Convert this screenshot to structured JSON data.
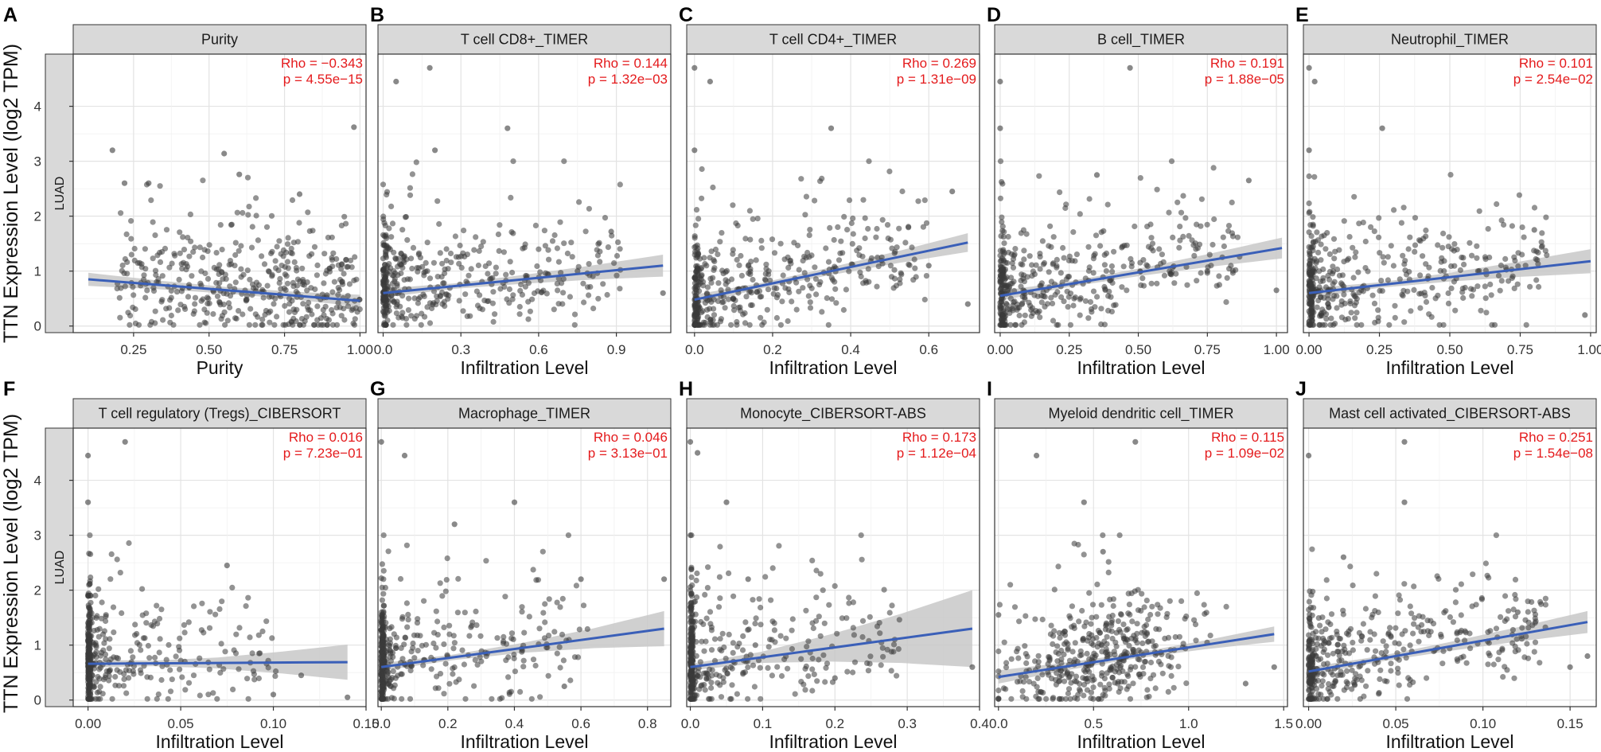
{
  "figure": {
    "y_axis_label": "TTN Expression Level (log2 TPM)",
    "row_strip_label": "LUAD",
    "colors": {
      "point": "#3a3a3a",
      "fit_line": "#3a5fb8",
      "band": "#c8c8c8",
      "stat_text": "#e41a1c",
      "strip_fill": "#d9d9d9"
    }
  },
  "chart_data": [
    {
      "type": "scatter",
      "letter": "A",
      "title": "Purity",
      "xlabel": "Purity",
      "ylabel": "TTN Expression Level (log2 TPM)",
      "rho": "Rho = −0.343",
      "p": "p = 4.55e−15",
      "xlim": [
        0.05,
        1.02
      ],
      "ylim": [
        -0.12,
        4.95
      ],
      "xticks": [
        0.25,
        0.5,
        0.75,
        1.0
      ],
      "xtick_labels": [
        "0.25",
        "0.50",
        "0.75",
        "1.00"
      ],
      "yticks": [
        0,
        1,
        2,
        3,
        4
      ],
      "fit": {
        "x": [
          0.1,
          1.0
        ],
        "y": [
          0.85,
          0.46
        ]
      },
      "band": [
        0.12,
        0.08,
        0.06,
        0.07,
        0.11
      ],
      "xdist": "unif",
      "xmin": 0.1,
      "xmax": 1.0,
      "outliers": [
        [
          0.98,
          3.62
        ],
        [
          0.55,
          3.14
        ],
        [
          0.18,
          3.2
        ],
        [
          0.6,
          2.76
        ],
        [
          0.3,
          2.6
        ],
        [
          0.22,
          2.6
        ],
        [
          0.8,
          2.4
        ]
      ]
    },
    {
      "type": "scatter",
      "letter": "B",
      "title": "T cell CD8+_TIMER",
      "xlabel": "Infiltration Level",
      "ylabel": "TTN Expression Level (log2 TPM)",
      "rho": "Rho = 0.144",
      "p": "p = 1.32e−03",
      "xlim": [
        -0.02,
        1.11
      ],
      "ylim": [
        -0.12,
        4.95
      ],
      "xticks": [
        0,
        0.3,
        0.6,
        0.9
      ],
      "xtick_labels": [
        "0.0",
        "0.3",
        "0.6",
        "0.9"
      ],
      "yticks": [
        0,
        1,
        2,
        3,
        4
      ],
      "fit": {
        "x": [
          0,
          1.08
        ],
        "y": [
          0.6,
          1.1
        ]
      },
      "band": [
        0.08,
        0.05,
        0.08,
        0.13,
        0.2
      ],
      "xdist": "skew",
      "xmin": 0,
      "xmax": 1.08,
      "outliers": [
        [
          0.05,
          4.45
        ],
        [
          0.18,
          4.7
        ],
        [
          0.48,
          3.6
        ],
        [
          0.2,
          3.2
        ],
        [
          0.88,
          1.72
        ],
        [
          1.08,
          0.6
        ],
        [
          0.75,
          1.0
        ]
      ]
    },
    {
      "type": "scatter",
      "letter": "C",
      "title": "T cell CD4+_TIMER",
      "xlabel": "Infiltration Level",
      "ylabel": "TTN Expression Level (log2 TPM)",
      "rho": "Rho = 0.269",
      "p": "p = 1.31e−09",
      "xlim": [
        -0.02,
        0.73
      ],
      "ylim": [
        -0.12,
        4.95
      ],
      "xticks": [
        0,
        0.2,
        0.4,
        0.6
      ],
      "xtick_labels": [
        "0.0",
        "0.2",
        "0.4",
        "0.6"
      ],
      "yticks": [
        0,
        1,
        2,
        3,
        4
      ],
      "fit": {
        "x": [
          0,
          0.7
        ],
        "y": [
          0.48,
          1.52
        ]
      },
      "band": [
        0.09,
        0.05,
        0.07,
        0.11,
        0.17
      ],
      "xdist": "skew",
      "xmin": 0,
      "xmax": 0.7,
      "outliers": [
        [
          0.0,
          4.7
        ],
        [
          0.04,
          4.45
        ],
        [
          0.35,
          3.6
        ],
        [
          0.0,
          3.2
        ],
        [
          0.66,
          2.45
        ],
        [
          0.7,
          0.4
        ],
        [
          0.6,
          1.1
        ]
      ]
    },
    {
      "type": "scatter",
      "letter": "D",
      "title": "B cell_TIMER",
      "xlabel": "Infiltration Level",
      "ylabel": "TTN Expression Level (log2 TPM)",
      "rho": "Rho = 0.191",
      "p": "p = 1.88e−05",
      "xlim": [
        -0.02,
        1.04
      ],
      "ylim": [
        -0.12,
        4.95
      ],
      "xticks": [
        0,
        0.25,
        0.5,
        0.75,
        1.0
      ],
      "xtick_labels": [
        "0.00",
        "0.25",
        "0.50",
        "0.75",
        "1.00"
      ],
      "yticks": [
        0,
        1,
        2,
        3,
        4
      ],
      "fit": {
        "x": [
          0,
          1.02
        ],
        "y": [
          0.55,
          1.42
        ]
      },
      "band": [
        0.09,
        0.05,
        0.07,
        0.12,
        0.19
      ],
      "xdist": "skew",
      "xmin": 0,
      "xmax": 1.02,
      "outliers": [
        [
          0.0,
          4.45
        ],
        [
          0.47,
          4.7
        ],
        [
          0.0,
          3.6
        ],
        [
          0.35,
          2.75
        ],
        [
          0.9,
          2.65
        ],
        [
          1.0,
          0.65
        ],
        [
          0.75,
          1.0
        ]
      ]
    },
    {
      "type": "scatter",
      "letter": "E",
      "title": "Neutrophil_TIMER",
      "xlabel": "Infiltration Level",
      "ylabel": "TTN Expression Level (log2 TPM)",
      "rho": "Rho = 0.101",
      "p": "p = 2.54e−02",
      "xlim": [
        -0.02,
        1.02
      ],
      "ylim": [
        -0.12,
        4.95
      ],
      "xticks": [
        0,
        0.25,
        0.5,
        0.75,
        1.0
      ],
      "xtick_labels": [
        "0.00",
        "0.25",
        "0.50",
        "0.75",
        "1.00"
      ],
      "yticks": [
        0,
        1,
        2,
        3,
        4
      ],
      "fit": {
        "x": [
          0,
          1.0
        ],
        "y": [
          0.6,
          1.18
        ]
      },
      "band": [
        0.09,
        0.05,
        0.08,
        0.14,
        0.22
      ],
      "xdist": "skew",
      "xmin": 0,
      "xmax": 1.0,
      "outliers": [
        [
          0.0,
          4.7
        ],
        [
          0.02,
          4.45
        ],
        [
          0.26,
          3.6
        ],
        [
          0.0,
          3.2
        ],
        [
          0.8,
          1.75
        ],
        [
          0.98,
          0.2
        ],
        [
          0.6,
          1.0
        ]
      ]
    },
    {
      "type": "scatter",
      "letter": "F",
      "title": "T cell regulatory (Tregs)_CIBERSORT",
      "xlabel": "Infiltration Level",
      "ylabel": "TTN Expression Level (log2 TPM)",
      "rho": "Rho = 0.016",
      "p": "p = 7.23e−01",
      "xlim": [
        -0.008,
        0.15
      ],
      "ylim": [
        -0.12,
        4.95
      ],
      "xticks": [
        0,
        0.05,
        0.1,
        0.15
      ],
      "xtick_labels": [
        "0.00",
        "0.05",
        "0.10",
        "0.15"
      ],
      "yticks": [
        0,
        1,
        2,
        3,
        4
      ],
      "fit": {
        "x": [
          0,
          0.14
        ],
        "y": [
          0.66,
          0.69
        ]
      },
      "band": [
        0.07,
        0.05,
        0.1,
        0.2,
        0.32
      ],
      "xdist": "zero",
      "xmin": 0,
      "xmax": 0.14,
      "outliers": [
        [
          0.0,
          4.45
        ],
        [
          0.02,
          4.7
        ],
        [
          0.0,
          3.6
        ],
        [
          0.14,
          0.05
        ],
        [
          0.075,
          2.45
        ],
        [
          0.1,
          0.1
        ],
        [
          0.115,
          0.45
        ]
      ]
    },
    {
      "type": "scatter",
      "letter": "G",
      "title": "Macrophage_TIMER",
      "xlabel": "Infiltration Level",
      "ylabel": "TTN Expression Level (log2 TPM)",
      "rho": "Rho = 0.046",
      "p": "p = 3.13e−01",
      "xlim": [
        -0.01,
        0.87
      ],
      "ylim": [
        -0.12,
        4.95
      ],
      "xticks": [
        0,
        0.2,
        0.4,
        0.6,
        0.8
      ],
      "xtick_labels": [
        "0.0",
        "0.2",
        "0.4",
        "0.6",
        "0.8"
      ],
      "yticks": [
        0,
        1,
        2,
        3,
        4
      ],
      "fit": {
        "x": [
          0,
          0.85
        ],
        "y": [
          0.6,
          1.3
        ]
      },
      "band": [
        0.07,
        0.05,
        0.09,
        0.18,
        0.32
      ],
      "xdist": "zero",
      "xmin": 0,
      "xmax": 0.85,
      "outliers": [
        [
          0.0,
          4.7
        ],
        [
          0.07,
          4.45
        ],
        [
          0.4,
          3.6
        ],
        [
          0.22,
          3.2
        ],
        [
          0.6,
          2.2
        ],
        [
          0.85,
          2.2
        ],
        [
          0.55,
          0.25
        ]
      ]
    },
    {
      "type": "scatter",
      "letter": "H",
      "title": "Monocyte_CIBERSORT-ABS",
      "xlabel": "Infiltration Level",
      "ylabel": "TTN Expression Level (log2 TPM)",
      "rho": "Rho = 0.173",
      "p": "p = 1.12e−04",
      "xlim": [
        -0.005,
        0.4
      ],
      "ylim": [
        -0.12,
        4.95
      ],
      "xticks": [
        0,
        0.1,
        0.2,
        0.3,
        0.4
      ],
      "xtick_labels": [
        "0.0",
        "0.1",
        "0.2",
        "0.3",
        "0.4"
      ],
      "yticks": [
        0,
        1,
        2,
        3,
        4
      ],
      "fit": {
        "x": [
          0,
          0.39
        ],
        "y": [
          0.6,
          1.3
        ]
      },
      "band": [
        0.06,
        0.1,
        0.25,
        0.45,
        0.7
      ],
      "xdist": "zero",
      "xmin": 0,
      "xmax": 0.39,
      "outliers": [
        [
          0.0,
          4.7
        ],
        [
          0.01,
          4.5
        ],
        [
          0.05,
          3.6
        ],
        [
          0.08,
          2.2
        ],
        [
          0.2,
          0.4
        ],
        [
          0.39,
          0.6
        ],
        [
          0.09,
          1.0
        ]
      ]
    },
    {
      "type": "scatter",
      "letter": "I",
      "title": "Myeloid dendritic cell_TIMER",
      "xlabel": "Infiltration Level",
      "ylabel": "TTN Expression Level (log2 TPM)",
      "rho": "Rho = 0.115",
      "p": "p = 1.09e−02",
      "xlim": [
        -0.02,
        1.52
      ],
      "ylim": [
        -0.12,
        4.95
      ],
      "xticks": [
        0,
        0.5,
        1.0,
        1.5
      ],
      "xtick_labels": [
        "0.0",
        "0.5",
        "1.0",
        "1.5"
      ],
      "yticks": [
        0,
        1,
        2,
        3,
        4
      ],
      "fit": {
        "x": [
          0,
          1.45
        ],
        "y": [
          0.42,
          1.2
        ]
      },
      "band": [
        0.12,
        0.07,
        0.05,
        0.08,
        0.14
      ],
      "xdist": "mid",
      "xmin": 0,
      "xmax": 1.45,
      "outliers": [
        [
          0.2,
          4.45
        ],
        [
          0.72,
          4.7
        ],
        [
          0.45,
          3.6
        ],
        [
          1.45,
          0.6
        ],
        [
          0.0,
          1.55
        ],
        [
          1.3,
          0.3
        ],
        [
          0.55,
          2.7
        ]
      ]
    },
    {
      "type": "scatter",
      "letter": "J",
      "title": "Mast cell activated_CIBERSORT-ABS",
      "xlabel": "Infiltration Level",
      "ylabel": "TTN Expression Level (log2 TPM)",
      "rho": "Rho = 0.251",
      "p": "p = 1.54e−08",
      "xlim": [
        -0.003,
        0.165
      ],
      "ylim": [
        -0.12,
        4.95
      ],
      "xticks": [
        0,
        0.05,
        0.1,
        0.15
      ],
      "xtick_labels": [
        "0.00",
        "0.05",
        "0.10",
        "0.15"
      ],
      "yticks": [
        0,
        1,
        2,
        3,
        4
      ],
      "fit": {
        "x": [
          0,
          0.16
        ],
        "y": [
          0.52,
          1.42
        ]
      },
      "band": [
        0.08,
        0.05,
        0.08,
        0.13,
        0.2
      ],
      "xdist": "skew",
      "xmin": 0,
      "xmax": 0.16,
      "outliers": [
        [
          0.0,
          4.45
        ],
        [
          0.055,
          4.7
        ],
        [
          0.055,
          3.6
        ],
        [
          0.02,
          2.6
        ],
        [
          0.16,
          0.8
        ],
        [
          0.15,
          0.6
        ],
        [
          0.12,
          1.6
        ]
      ]
    }
  ]
}
